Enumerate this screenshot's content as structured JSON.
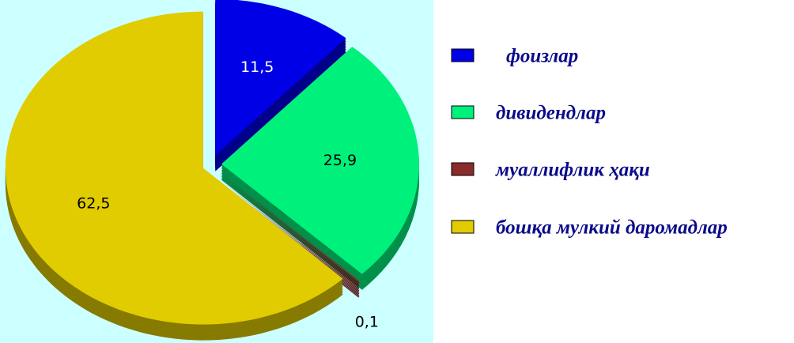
{
  "chart_data": {
    "type": "pie",
    "categories": [
      "фоизлар",
      "дивидендлар",
      "муаллифлик ҳақи",
      "бошқа мулкий даромадлар"
    ],
    "values": [
      11.5,
      25.9,
      0.1,
      62.5
    ],
    "value_labels": [
      "11,5",
      "25,9",
      "0,1",
      "62,5"
    ],
    "colors": [
      "#0000e6",
      "#00f07c",
      "#8b2a2a",
      "#e0cc00"
    ],
    "legend": "right"
  }
}
